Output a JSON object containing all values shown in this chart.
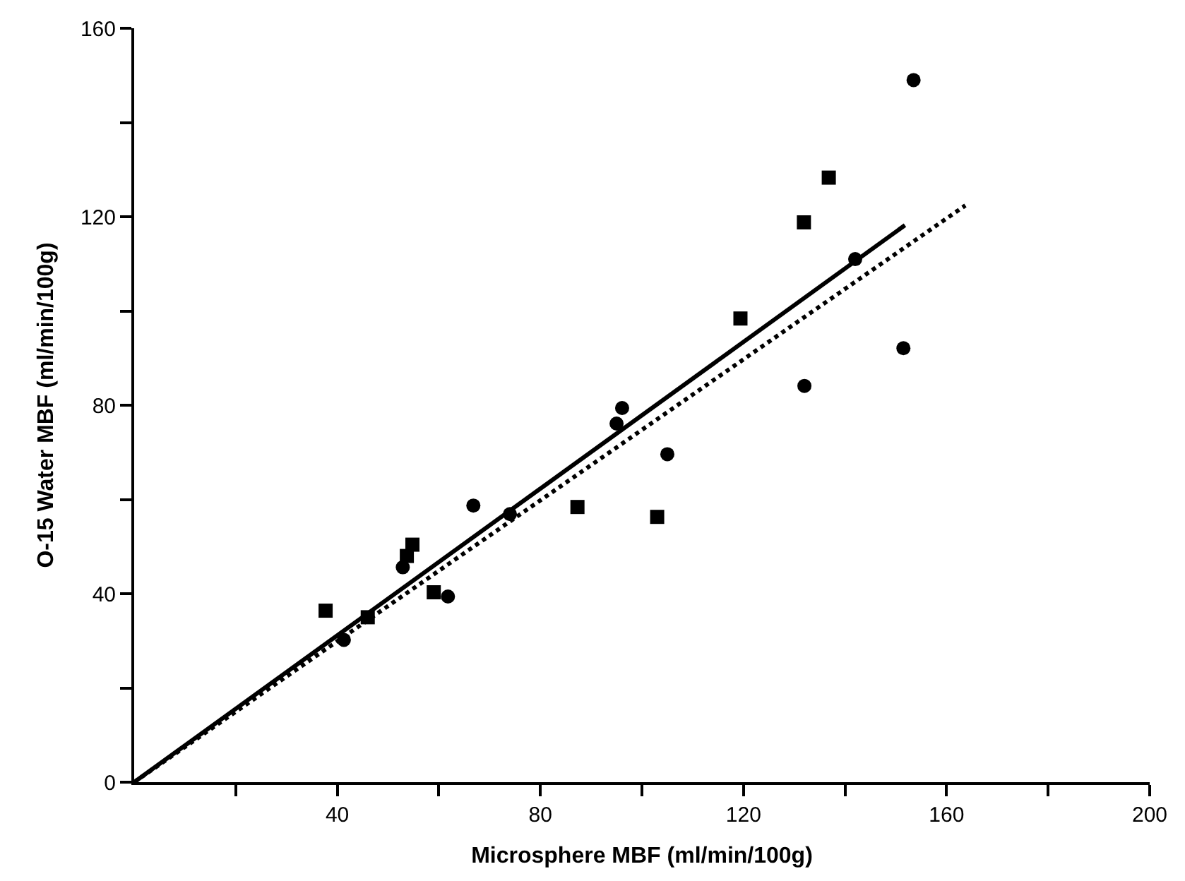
{
  "chart_data": {
    "type": "scatter",
    "xlabel": "Microsphere MBF (ml/min/100g)",
    "ylabel": "O-15 Water MBF (ml/min/100g)",
    "xlim": [
      0,
      200
    ],
    "ylim": [
      0,
      160
    ],
    "xticks": [
      {
        "value": 20,
        "label": null
      },
      40,
      {
        "value": 60,
        "label": null
      },
      80,
      {
        "value": 100,
        "label": null
      },
      120,
      {
        "value": 140,
        "label": null
      },
      160,
      {
        "value": 180,
        "label": null
      },
      200
    ],
    "yticks": [
      0,
      {
        "value": 20,
        "label": null
      },
      40,
      {
        "value": 60,
        "label": null
      },
      80,
      {
        "value": 100,
        "label": null
      },
      120,
      {
        "value": 140,
        "label": null
      },
      160
    ],
    "series": [
      {
        "marker": "circle",
        "color": "#000000",
        "x": [
          41.3,
          52.9,
          66.8,
          74,
          61.8,
          95,
          96.1,
          105,
          132,
          142,
          151.5,
          153.5
        ],
        "values": [
          30.2,
          45.6,
          58.7,
          56.9,
          39.4,
          76.1,
          79.4,
          69.6,
          84.1,
          111,
          92.1,
          149
        ]
      },
      {
        "marker": "square",
        "color": "#000000",
        "x": [
          37.7,
          46,
          53.7,
          54.8,
          59,
          87.3,
          103,
          119.4,
          131.9,
          136.8
        ],
        "values": [
          36.4,
          35,
          48,
          50.4,
          40.3,
          58.4,
          56.3,
          98.4,
          118.8,
          128.3
        ]
      },
      {
        "type": "line",
        "line_style": "solid",
        "color": "#000000",
        "x": [
          0,
          151.8
        ],
        "values": [
          0,
          118.2
        ]
      },
      {
        "type": "line",
        "line_style": "dotted",
        "color": "#000000",
        "x": [
          0,
          163.7
        ],
        "values": [
          0,
          122.4
        ]
      }
    ]
  }
}
